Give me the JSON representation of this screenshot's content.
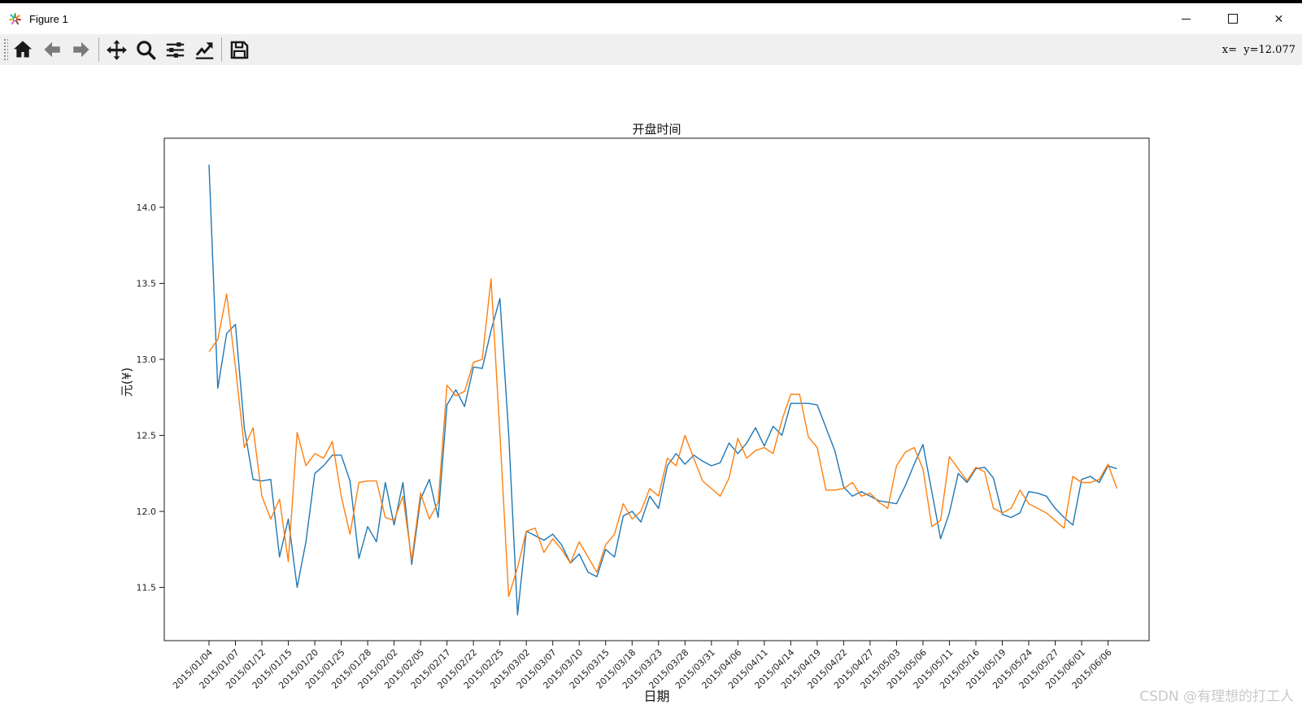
{
  "window": {
    "title": "Figure 1",
    "controls": {
      "minimize": "—",
      "maximize": "□",
      "close": "✕"
    }
  },
  "toolbar": {
    "icons": [
      {
        "name": "home-icon"
      },
      {
        "name": "back-icon"
      },
      {
        "name": "forward-icon"
      },
      {
        "name": "pan-icon"
      },
      {
        "name": "zoom-icon"
      },
      {
        "name": "subplots-icon"
      },
      {
        "name": "customize-icon"
      },
      {
        "name": "save-icon"
      }
    ],
    "coords_label": "x=  y=12.077"
  },
  "watermark": "CSDN @有理想的打工人",
  "chart_data": {
    "type": "line",
    "title": "开盘时间",
    "xlabel": "日期",
    "ylabel": "元(¥)",
    "grid": false,
    "legend": "none",
    "ylim": [
      11.15,
      14.45
    ],
    "y_tick_labels": [
      "11.5",
      "12.0",
      "12.5",
      "13.0",
      "13.5",
      "14.0"
    ],
    "x_tick_every_n_points": 3,
    "x_tick_labels": [
      "2015/01/04",
      "2015/01/07",
      "2015/01/12",
      "2015/01/15",
      "2015/01/20",
      "2015/01/25",
      "2015/01/28",
      "2015/02/02",
      "2015/02/05",
      "2015/02/17",
      "2015/02/22",
      "2015/02/25",
      "2015/03/02",
      "2015/03/07",
      "2015/03/10",
      "2015/03/15",
      "2015/03/18",
      "2015/03/23",
      "2015/03/28",
      "2015/03/31",
      "2015/04/06",
      "2015/04/11",
      "2015/04/14",
      "2015/04/19",
      "2015/04/22",
      "2015/04/27",
      "2015/05/03",
      "2015/05/06",
      "2015/05/11",
      "2015/05/16",
      "2015/05/19",
      "2015/05/24",
      "2015/05/27",
      "2015/06/01",
      "2015/06/06"
    ],
    "series": [
      {
        "name": "series-blue",
        "color": "#1f77b4",
        "values": [
          14.28,
          12.81,
          13.17,
          13.23,
          12.55,
          12.21,
          12.2,
          12.21,
          11.7,
          11.95,
          11.5,
          11.8,
          12.25,
          12.3,
          12.37,
          12.37,
          12.2,
          11.69,
          11.9,
          11.8,
          12.19,
          11.91,
          12.19,
          11.65,
          12.08,
          12.21,
          11.96,
          12.7,
          12.8,
          12.69,
          12.95,
          12.94,
          13.19,
          13.4,
          12.51,
          11.32,
          11.87,
          11.84,
          11.81,
          11.85,
          11.78,
          11.66,
          11.72,
          11.6,
          11.57,
          11.75,
          11.7,
          11.97,
          12.0,
          11.93,
          12.1,
          12.02,
          12.3,
          12.38,
          12.31,
          12.37,
          12.33,
          12.3,
          12.32,
          12.45,
          12.38,
          12.45,
          12.55,
          12.43,
          12.56,
          12.5,
          12.71,
          12.71,
          12.71,
          12.7,
          12.55,
          12.4,
          12.16,
          12.1,
          12.13,
          12.1,
          12.07,
          12.06,
          12.05,
          12.17,
          12.31,
          12.44,
          12.13,
          11.82,
          11.99,
          12.25,
          12.19,
          12.28,
          12.29,
          12.22,
          11.98,
          11.96,
          11.99,
          12.13,
          12.12,
          12.1,
          12.02,
          11.96,
          11.91,
          12.21,
          12.23,
          12.19,
          12.3,
          12.28
        ]
      },
      {
        "name": "series-orange",
        "color": "#ff7f0e",
        "values": [
          13.05,
          13.13,
          13.43,
          12.95,
          12.42,
          12.55,
          12.1,
          11.95,
          12.08,
          11.67,
          12.52,
          12.3,
          12.38,
          12.35,
          12.46,
          12.1,
          11.85,
          12.19,
          12.2,
          12.2,
          11.96,
          11.94,
          12.1,
          11.68,
          12.12,
          11.95,
          12.06,
          12.83,
          12.76,
          12.79,
          12.98,
          13.0,
          13.53,
          12.51,
          11.44,
          11.63,
          11.87,
          11.89,
          11.73,
          11.82,
          11.75,
          11.66,
          11.8,
          11.7,
          11.6,
          11.78,
          11.85,
          12.05,
          11.95,
          12.0,
          12.15,
          12.1,
          12.35,
          12.3,
          12.5,
          12.35,
          12.2,
          12.15,
          12.1,
          12.22,
          12.48,
          12.35,
          12.4,
          12.42,
          12.38,
          12.6,
          12.77,
          12.77,
          12.49,
          12.42,
          12.14,
          12.14,
          12.15,
          12.19,
          12.1,
          12.12,
          12.06,
          12.02,
          12.3,
          12.39,
          12.42,
          12.28,
          11.9,
          11.94,
          12.36,
          12.28,
          12.2,
          12.29,
          12.26,
          12.02,
          11.99,
          12.02,
          12.14,
          12.05,
          12.02,
          11.99,
          11.94,
          11.89,
          12.23,
          12.19,
          12.19,
          12.21,
          12.31,
          12.15
        ]
      }
    ]
  }
}
